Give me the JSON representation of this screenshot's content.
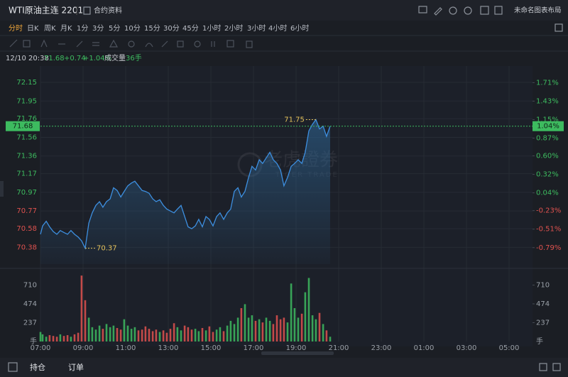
{
  "header": {
    "title": "WTI原油主连 2201",
    "info_link": "合约资料",
    "layout_name": "未命名图表布局"
  },
  "timeframes": [
    "分时",
    "日K",
    "周K",
    "月K",
    "1分",
    "3分",
    "5分",
    "10分",
    "15分",
    "30分",
    "45分",
    "1小时",
    "2小时",
    "3小时",
    "4小时",
    "6小时"
  ],
  "active_timeframe": "分时",
  "quote": {
    "time": "12/10 20:38",
    "price": "71.68",
    "change": "+0.74",
    "change_pct": "+1.04%",
    "volume_label": "成交量",
    "volume": "36手"
  },
  "chart_data": {
    "type": "line",
    "color": "#3d8fe0",
    "x": [
      7.0,
      7.1,
      7.27,
      7.43,
      7.6,
      7.77,
      7.93,
      8.1,
      8.27,
      8.43,
      8.6,
      8.77,
      8.93,
      9.1,
      9.27,
      9.43,
      9.6,
      9.77,
      9.93,
      10.1,
      10.27,
      10.43,
      10.6,
      10.77,
      10.93,
      11.1,
      11.27,
      11.43,
      11.6,
      11.77,
      11.93,
      12.1,
      12.27,
      12.43,
      12.6,
      12.77,
      12.93,
      13.1,
      13.27,
      13.43,
      13.6,
      13.77,
      13.93,
      14.1,
      14.27,
      14.43,
      14.6,
      14.77,
      14.93,
      15.1,
      15.27,
      15.43,
      15.6,
      15.77,
      15.93,
      16.1,
      16.27,
      16.43,
      16.6,
      16.77,
      16.93,
      17.1,
      17.27,
      17.43,
      17.6,
      17.77,
      17.93,
      18.1,
      18.27,
      18.43,
      18.6,
      18.77,
      18.93,
      19.1,
      19.27,
      19.43,
      19.6,
      19.77,
      19.93,
      20.1,
      20.27,
      20.43,
      20.6
    ],
    "values": [
      70.52,
      70.61,
      70.66,
      70.6,
      70.55,
      70.52,
      70.56,
      70.54,
      70.52,
      70.56,
      70.52,
      70.49,
      70.45,
      70.37,
      70.64,
      70.75,
      70.83,
      70.87,
      70.81,
      70.87,
      70.9,
      71.02,
      70.99,
      70.92,
      70.98,
      71.04,
      71.07,
      71.09,
      71.04,
      70.99,
      70.98,
      70.96,
      70.9,
      70.87,
      70.89,
      70.83,
      70.79,
      70.77,
      70.75,
      70.79,
      70.83,
      70.71,
      70.6,
      70.58,
      70.61,
      70.68,
      70.6,
      70.71,
      70.68,
      70.61,
      70.71,
      70.75,
      70.68,
      70.75,
      70.79,
      70.98,
      71.02,
      70.92,
      70.98,
      71.13,
      71.25,
      71.21,
      71.32,
      71.28,
      71.34,
      71.4,
      71.32,
      71.28,
      71.21,
      71.04,
      71.13,
      71.25,
      71.28,
      71.32,
      71.28,
      71.4,
      71.63,
      71.7,
      71.75,
      71.65,
      71.68,
      71.57,
      71.68
    ],
    "xlim": [
      7,
      30.1
    ],
    "xticks": [
      {
        "value": 7,
        "label": "07:00"
      },
      {
        "value": 9,
        "label": "09:00"
      },
      {
        "value": 11,
        "label": "11:00"
      },
      {
        "value": 13,
        "label": "13:00"
      },
      {
        "value": 15,
        "label": "15:00"
      },
      {
        "value": 17,
        "label": "17:00"
      },
      {
        "value": 19,
        "label": "19:00"
      },
      {
        "value": 21,
        "label": "21:00"
      },
      {
        "value": 23,
        "label": "23:00"
      },
      {
        "value": 25,
        "label": "01:00"
      },
      {
        "value": 27,
        "label": "03:00"
      },
      {
        "value": 29,
        "label": "05:00"
      }
    ],
    "ylim": [
      70.2,
      72.31
    ],
    "yticks": [
      72.15,
      71.95,
      71.76,
      71.56,
      71.36,
      71.17,
      70.97,
      70.77,
      70.58,
      70.38
    ],
    "y2lim": [
      -1.04,
      1.94
    ],
    "y2ticks": [
      {
        "value": 1.71,
        "label": "1.71%"
      },
      {
        "value": 1.43,
        "label": "1.43%"
      },
      {
        "value": 1.15,
        "label": "1.15%"
      },
      {
        "value": 0.87,
        "label": "0.87%"
      },
      {
        "value": 0.6,
        "label": "0.60%"
      },
      {
        "value": 0.32,
        "label": "0.32%"
      },
      {
        "value": 0.04,
        "label": "0.04%"
      },
      {
        "value": -0.23,
        "label": "-0.23%"
      },
      {
        "value": -0.51,
        "label": "-0.51%"
      },
      {
        "value": -0.79,
        "label": "-0.79%"
      }
    ],
    "grid": true,
    "up_color": "#3dbb5f",
    "down_color": "#e0524f",
    "high": {
      "value": 71.75,
      "label": "71.75"
    },
    "low": {
      "value": 70.37,
      "label": "70.37"
    },
    "last": {
      "value": 71.68,
      "label": "71.68",
      "pct_label": "1.04%"
    },
    "watermark": {
      "text": "老虎證券",
      "sub": "TIGER TRADE"
    },
    "volume": {
      "values": [
        120,
        90,
        60,
        80,
        70,
        60,
        90,
        70,
        80,
        60,
        90,
        110,
        830,
        520,
        300,
        180,
        150,
        200,
        160,
        220,
        180,
        200,
        170,
        150,
        280,
        200,
        160,
        180,
        140,
        150,
        190,
        160,
        130,
        150,
        120,
        140,
        110,
        160,
        230,
        180,
        140,
        200,
        180,
        150,
        160,
        130,
        170,
        140,
        190,
        120,
        150,
        180,
        130,
        200,
        260,
        220,
        300,
        420,
        470,
        300,
        330,
        260,
        280,
        240,
        300,
        260,
        220,
        330,
        280,
        300,
        240,
        730,
        420,
        300,
        350,
        620,
        800,
        330,
        280,
        360,
        220,
        140,
        60
      ],
      "ylim": [
        0,
        858
      ],
      "yticks": [
        237,
        474,
        710
      ],
      "unit": "手"
    }
  },
  "bottom_tabs": [
    "持仓",
    "订单"
  ]
}
